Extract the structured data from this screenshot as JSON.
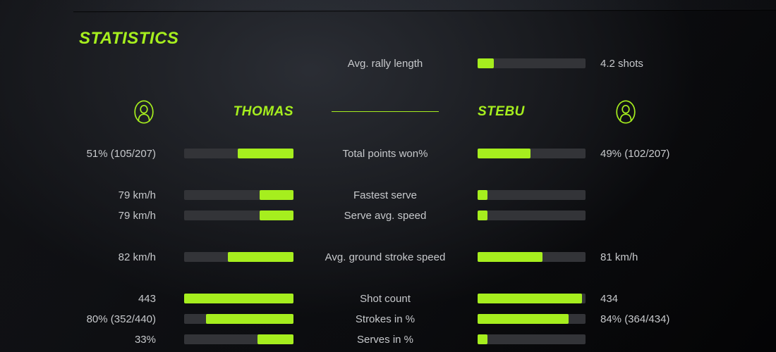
{
  "title": "STATISTICS",
  "colors": {
    "accent": "#a6ee1e",
    "bar_track": "#333438",
    "text": "#c7c9cc"
  },
  "rally": {
    "label": "Avg. rally length",
    "value": "4.2 shots",
    "fill_pct": 15
  },
  "players": {
    "left": {
      "name": "THOMAS",
      "icon": "user-icon"
    },
    "right": {
      "name": "STEBU",
      "icon": "user-icon"
    }
  },
  "stats": [
    {
      "label": "Total points won%",
      "left": {
        "value": "51% (105/207)",
        "pct": 51
      },
      "right": {
        "value": "49% (102/207)",
        "pct": 49
      }
    },
    {
      "label": "Fastest serve",
      "left": {
        "value": "79 km/h",
        "pct": 31
      },
      "right": {
        "value": "",
        "pct": 9
      }
    },
    {
      "label": "Serve avg. speed",
      "left": {
        "value": "79 km/h",
        "pct": 31
      },
      "right": {
        "value": "",
        "pct": 9
      }
    },
    {
      "label": "Avg. ground stroke speed",
      "left": {
        "value": "82 km/h",
        "pct": 60
      },
      "right": {
        "value": "81 km/h",
        "pct": 60
      }
    },
    {
      "label": "Shot count",
      "left": {
        "value": "443",
        "pct": 100
      },
      "right": {
        "value": "434",
        "pct": 97
      }
    },
    {
      "label": "Strokes in %",
      "left": {
        "value": "80% (352/440)",
        "pct": 80
      },
      "right": {
        "value": "84% (364/434)",
        "pct": 84
      }
    },
    {
      "label": "Serves in %",
      "left": {
        "value": "33%",
        "pct": 33
      },
      "right": {
        "value": "",
        "pct": 9
      }
    }
  ]
}
